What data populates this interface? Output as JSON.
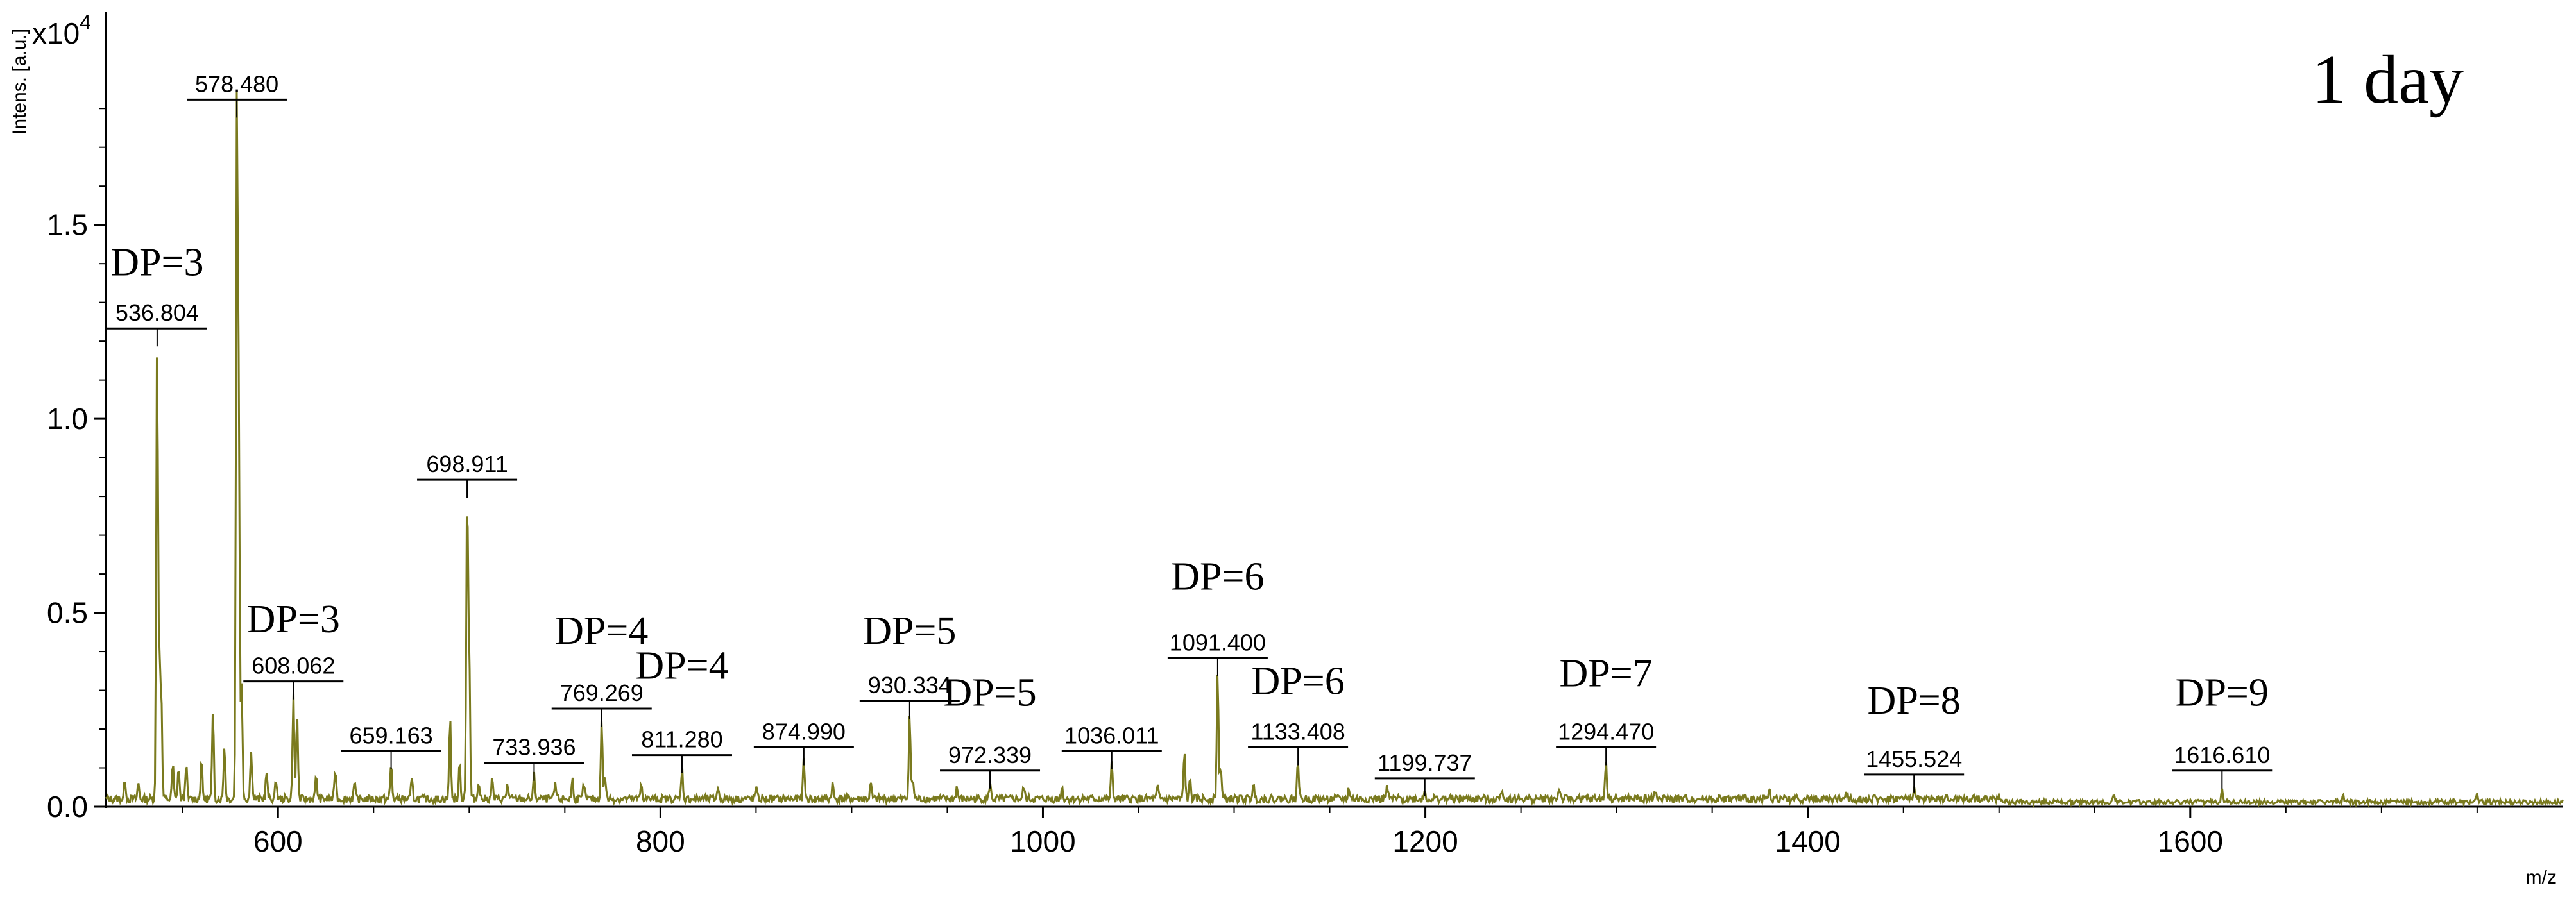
{
  "chart_data": {
    "type": "line",
    "title": "1 day",
    "xlabel": "m/z",
    "ylabel": "Intens. [a.u.]",
    "y_exponent": "x10",
    "y_exponent_power": "4",
    "xlim": [
      510,
      1795
    ],
    "ylim": [
      0,
      2.05
    ],
    "x_ticks": [
      "600",
      "800",
      "1000",
      "1200",
      "1400",
      "1600"
    ],
    "y_ticks": [
      "0.0",
      "0.5",
      "1.0",
      "1.5"
    ],
    "grid": false,
    "line_color": "#7a7a1e",
    "baseline": 0.02,
    "peaks": [
      {
        "x": 520,
        "y": 0.05
      },
      {
        "x": 527,
        "y": 0.04
      },
      {
        "x": 536.804,
        "y": 1.18,
        "label": "536.804"
      },
      {
        "x": 538,
        "y": 0.34
      },
      {
        "x": 539,
        "y": 0.25
      },
      {
        "x": 545,
        "y": 0.09
      },
      {
        "x": 548,
        "y": 0.08
      },
      {
        "x": 552,
        "y": 0.09
      },
      {
        "x": 560,
        "y": 0.1
      },
      {
        "x": 566,
        "y": 0.22
      },
      {
        "x": 572,
        "y": 0.14
      },
      {
        "x": 578.48,
        "y": 1.77,
        "label": "578.480"
      },
      {
        "x": 579.5,
        "y": 0.99
      },
      {
        "x": 581,
        "y": 0.3
      },
      {
        "x": 586,
        "y": 0.13
      },
      {
        "x": 594,
        "y": 0.07
      },
      {
        "x": 599,
        "y": 0.05
      },
      {
        "x": 608.062,
        "y": 0.27,
        "label": "608.062"
      },
      {
        "x": 610,
        "y": 0.22
      },
      {
        "x": 620,
        "y": 0.06
      },
      {
        "x": 630,
        "y": 0.08
      },
      {
        "x": 640,
        "y": 0.04
      },
      {
        "x": 659.163,
        "y": 0.09,
        "label": "659.163"
      },
      {
        "x": 670,
        "y": 0.05
      },
      {
        "x": 690,
        "y": 0.21
      },
      {
        "x": 695,
        "y": 0.09
      },
      {
        "x": 698.911,
        "y": 0.79,
        "label": "698.911"
      },
      {
        "x": 700,
        "y": 0.37
      },
      {
        "x": 705,
        "y": 0.05
      },
      {
        "x": 712,
        "y": 0.05
      },
      {
        "x": 720,
        "y": 0.04
      },
      {
        "x": 733.936,
        "y": 0.06,
        "label": "733.936"
      },
      {
        "x": 745,
        "y": 0.04
      },
      {
        "x": 754,
        "y": 0.05
      },
      {
        "x": 760,
        "y": 0.04
      },
      {
        "x": 769.269,
        "y": 0.2,
        "label": "769.269"
      },
      {
        "x": 771,
        "y": 0.06
      },
      {
        "x": 790,
        "y": 0.04
      },
      {
        "x": 811.28,
        "y": 0.08,
        "label": "811.280"
      },
      {
        "x": 830,
        "y": 0.03
      },
      {
        "x": 850,
        "y": 0.03
      },
      {
        "x": 874.99,
        "y": 0.1,
        "label": "874.990"
      },
      {
        "x": 890,
        "y": 0.04
      },
      {
        "x": 910,
        "y": 0.04
      },
      {
        "x": 930.334,
        "y": 0.22,
        "label": "930.334"
      },
      {
        "x": 932,
        "y": 0.05
      },
      {
        "x": 955,
        "y": 0.03
      },
      {
        "x": 972.339,
        "y": 0.04,
        "label": "972.339"
      },
      {
        "x": 990,
        "y": 0.03
      },
      {
        "x": 1010,
        "y": 0.03
      },
      {
        "x": 1036.011,
        "y": 0.09,
        "label": "1036.011"
      },
      {
        "x": 1060,
        "y": 0.03
      },
      {
        "x": 1074,
        "y": 0.12
      },
      {
        "x": 1077,
        "y": 0.05
      },
      {
        "x": 1091.4,
        "y": 0.33,
        "label": "1091.400"
      },
      {
        "x": 1093,
        "y": 0.08
      },
      {
        "x": 1110,
        "y": 0.04
      },
      {
        "x": 1133.408,
        "y": 0.1,
        "label": "1133.408"
      },
      {
        "x": 1160,
        "y": 0.03
      },
      {
        "x": 1180,
        "y": 0.03
      },
      {
        "x": 1199.737,
        "y": 0.02,
        "label": "1199.737"
      },
      {
        "x": 1240,
        "y": 0.03
      },
      {
        "x": 1270,
        "y": 0.03
      },
      {
        "x": 1294.47,
        "y": 0.1,
        "label": "1294.470"
      },
      {
        "x": 1320,
        "y": 0.03
      },
      {
        "x": 1380,
        "y": 0.02
      },
      {
        "x": 1420,
        "y": 0.02
      },
      {
        "x": 1455.524,
        "y": 0.03,
        "label": "1455.524"
      },
      {
        "x": 1500,
        "y": 0.02
      },
      {
        "x": 1560,
        "y": 0.02
      },
      {
        "x": 1616.61,
        "y": 0.04,
        "label": "1616.610"
      },
      {
        "x": 1680,
        "y": 0.02
      },
      {
        "x": 1750,
        "y": 0.02
      }
    ],
    "annotations": [
      {
        "text": "DP=3",
        "x": 536.804,
        "y": 1.37
      },
      {
        "text": "DP=3",
        "x": 608.062,
        "y": 0.45
      },
      {
        "text": "DP=4",
        "x": 769.269,
        "y": 0.42
      },
      {
        "text": "DP=4",
        "x": 811.28,
        "y": 0.33
      },
      {
        "text": "DP=5",
        "x": 930.334,
        "y": 0.42
      },
      {
        "text": "DP=5",
        "x": 972.339,
        "y": 0.26
      },
      {
        "text": "DP=6",
        "x": 1091.4,
        "y": 0.56
      },
      {
        "text": "DP=6",
        "x": 1133.408,
        "y": 0.29
      },
      {
        "text": "DP=7",
        "x": 1294.47,
        "y": 0.31
      },
      {
        "text": "DP=8",
        "x": 1455.524,
        "y": 0.24
      },
      {
        "text": "DP=9",
        "x": 1616.61,
        "y": 0.26
      }
    ]
  }
}
